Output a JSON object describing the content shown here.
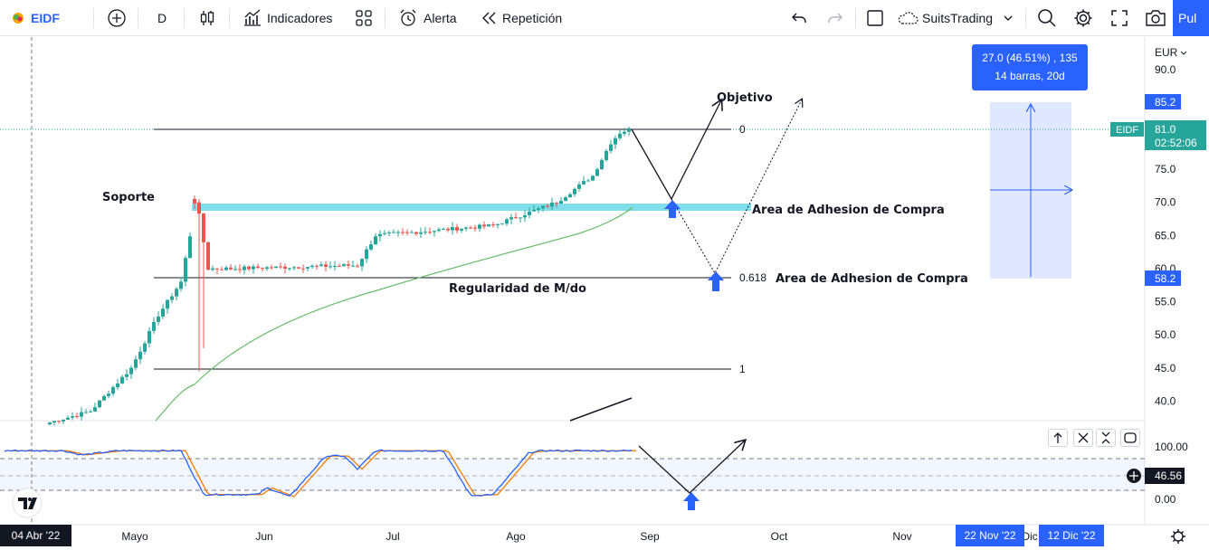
{
  "toolbar": {
    "symbol": "EIDF",
    "interval": "D",
    "indicators_label": "Indicadores",
    "alert_label": "Alerta",
    "replay_label": "Repetición",
    "layout_label": "SuitsTrading",
    "publish_label": "Pul"
  },
  "price_axis": {
    "currency": "EUR",
    "ticks": [
      90,
      75,
      70,
      65,
      60,
      55,
      50,
      45,
      40
    ],
    "high_marker": "85.2",
    "low_marker": "58.2",
    "last_price": "81.0",
    "countdown": "02:52:06",
    "symbol_tag": "EIDF"
  },
  "osc_axis": {
    "ticks": [
      "100.00",
      "0.00"
    ],
    "current": "46.56"
  },
  "time_axis": {
    "labels": [
      "Mayo",
      "Jun",
      "Jul",
      "Ago",
      "Sep",
      "Oct",
      "Nov",
      "Dic"
    ],
    "cursor_date": "04 Abr '22",
    "range_start": "22 Nov '22",
    "range_end": "12 Dic '22"
  },
  "measure_tooltip": {
    "line1": "27.0 (46.51%) , 135",
    "line2": "14 barras, 20d"
  },
  "annotations": {
    "soporte": "Soporte",
    "objetivo": "Objetivo",
    "area1": "Area de Adhesion de Compra",
    "area2": "Area de Adhesion de Compra",
    "regularidad": "Regularidad de M/do",
    "fib0": "0",
    "fib618": "0.618",
    "fib1": "1"
  },
  "colors": {
    "up": "#26a69a",
    "down": "#ef5350",
    "ma": "#66bb6a",
    "support": "#80deea",
    "accent": "#2962ff",
    "stoch_k": "#2962ff",
    "stoch_d": "#f57c00"
  },
  "chart_data": {
    "type": "candlestick",
    "symbol": "EIDF",
    "currency": "EUR",
    "ylim": [
      36,
      93
    ],
    "segments": [
      {
        "from": 45,
        "to": 70,
        "note": "rally to Soporte"
      },
      {
        "from": 70,
        "to": 60,
        "note": "consolidation"
      },
      {
        "from": 60,
        "to": 68,
        "note": "rise"
      },
      {
        "from": 68,
        "to": 81,
        "note": "final rally"
      }
    ],
    "fibonacci": [
      {
        "level": "0",
        "price": 81.0
      },
      {
        "level": "0.618",
        "price": 60.0
      },
      {
        "level": "1",
        "price": 44.5
      }
    ],
    "support_price": 69.2,
    "measure": {
      "from": 58.2,
      "to": 85.2,
      "change": "27.0 (46.51%)",
      "bars": 14,
      "days": "20d"
    },
    "oscillator": {
      "upper": 80,
      "lower": 20,
      "current": 46.56
    }
  }
}
